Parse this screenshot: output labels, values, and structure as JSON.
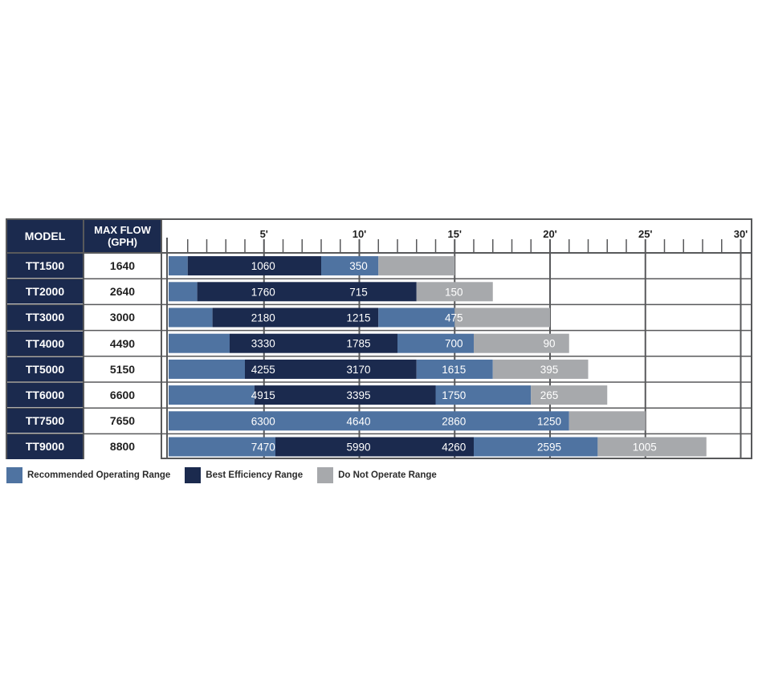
{
  "headers": {
    "model": "MODEL",
    "max_flow_line1": "MAX FLOW",
    "max_flow_line2": "(GPH)"
  },
  "colors": {
    "recommended": "#4f73a1",
    "best_efficiency": "#1b2a4e",
    "do_not_operate": "#a7a9ac",
    "header_bg": "#1b2a4e"
  },
  "legend": [
    {
      "label": "Recommended Operating Range",
      "color": "#4f73a1"
    },
    {
      "label": "Best Efficiency Range",
      "color": "#1b2a4e"
    },
    {
      "label": "Do Not Operate Range",
      "color": "#a7a9ac"
    }
  ],
  "chart_data": {
    "type": "bar",
    "orientation": "horizontal",
    "stacked": true,
    "xlim": [
      0,
      30
    ],
    "x_ticks": [
      "5'",
      "10'",
      "15'",
      "20'",
      "25'",
      "30'"
    ],
    "x_tick_values": [
      5,
      10,
      15,
      20,
      25,
      30
    ],
    "grid": true,
    "legend_position": "bottom-left",
    "rows": [
      {
        "model": "TT1500",
        "max_flow": "1640",
        "segments": [
          {
            "range": "recommended",
            "from": 0,
            "to": 1
          },
          {
            "range": "best_efficiency",
            "from": 1,
            "to": 8
          },
          {
            "range": "recommended",
            "from": 8,
            "to": 11
          },
          {
            "range": "do_not_operate",
            "from": 11,
            "to": 15
          }
        ],
        "labels": [
          {
            "text": "1060",
            "x": 5
          },
          {
            "text": "350",
            "x": 10
          }
        ]
      },
      {
        "model": "TT2000",
        "max_flow": "2640",
        "segments": [
          {
            "range": "recommended",
            "from": 0,
            "to": 1.5
          },
          {
            "range": "best_efficiency",
            "from": 1.5,
            "to": 13
          },
          {
            "range": "do_not_operate",
            "from": 13,
            "to": 17
          }
        ],
        "labels": [
          {
            "text": "1760",
            "x": 5
          },
          {
            "text": "715",
            "x": 10
          },
          {
            "text": "150",
            "x": 15
          }
        ]
      },
      {
        "model": "TT3000",
        "max_flow": "3000",
        "segments": [
          {
            "range": "recommended",
            "from": 0,
            "to": 2.3
          },
          {
            "range": "best_efficiency",
            "from": 2.3,
            "to": 11
          },
          {
            "range": "recommended",
            "from": 11,
            "to": 15
          },
          {
            "range": "do_not_operate",
            "from": 15,
            "to": 20
          }
        ],
        "labels": [
          {
            "text": "2180",
            "x": 5
          },
          {
            "text": "1215",
            "x": 10
          },
          {
            "text": "475",
            "x": 15
          }
        ]
      },
      {
        "model": "TT4000",
        "max_flow": "4490",
        "segments": [
          {
            "range": "recommended",
            "from": 0,
            "to": 3.2
          },
          {
            "range": "best_efficiency",
            "from": 3.2,
            "to": 12
          },
          {
            "range": "recommended",
            "from": 12,
            "to": 16
          },
          {
            "range": "do_not_operate",
            "from": 16,
            "to": 21
          }
        ],
        "labels": [
          {
            "text": "3330",
            "x": 5
          },
          {
            "text": "1785",
            "x": 10
          },
          {
            "text": "700",
            "x": 15
          },
          {
            "text": "90",
            "x": 20
          }
        ]
      },
      {
        "model": "TT5000",
        "max_flow": "5150",
        "segments": [
          {
            "range": "recommended",
            "from": 0,
            "to": 4
          },
          {
            "range": "best_efficiency",
            "from": 4,
            "to": 13
          },
          {
            "range": "recommended",
            "from": 13,
            "to": 17
          },
          {
            "range": "do_not_operate",
            "from": 17,
            "to": 22
          }
        ],
        "labels": [
          {
            "text": "4255",
            "x": 5
          },
          {
            "text": "3170",
            "x": 10
          },
          {
            "text": "1615",
            "x": 15
          },
          {
            "text": "395",
            "x": 20
          }
        ]
      },
      {
        "model": "TT6000",
        "max_flow": "6600",
        "segments": [
          {
            "range": "recommended",
            "from": 0,
            "to": 4.5
          },
          {
            "range": "best_efficiency",
            "from": 4.5,
            "to": 14
          },
          {
            "range": "recommended",
            "from": 14,
            "to": 19
          },
          {
            "range": "do_not_operate",
            "from": 19,
            "to": 23
          }
        ],
        "labels": [
          {
            "text": "4915",
            "x": 5
          },
          {
            "text": "3395",
            "x": 10
          },
          {
            "text": "1750",
            "x": 15
          },
          {
            "text": "265",
            "x": 20
          }
        ]
      },
      {
        "model": "TT7500",
        "max_flow": "7650",
        "segments": [
          {
            "range": "recommended",
            "from": 0,
            "to": 21
          },
          {
            "range": "do_not_operate",
            "from": 21,
            "to": 25
          }
        ],
        "labels": [
          {
            "text": "6300",
            "x": 5
          },
          {
            "text": "4640",
            "x": 10
          },
          {
            "text": "2860",
            "x": 15
          },
          {
            "text": "1250",
            "x": 20
          }
        ]
      },
      {
        "model": "TT9000",
        "max_flow": "8800",
        "segments": [
          {
            "range": "recommended",
            "from": 0,
            "to": 5.6
          },
          {
            "range": "best_efficiency",
            "from": 5.6,
            "to": 16
          },
          {
            "range": "recommended",
            "from": 16,
            "to": 22.5
          },
          {
            "range": "do_not_operate",
            "from": 22.5,
            "to": 28.2
          }
        ],
        "labels": [
          {
            "text": "7470",
            "x": 5
          },
          {
            "text": "5990",
            "x": 10
          },
          {
            "text": "4260",
            "x": 15
          },
          {
            "text": "2595",
            "x": 20
          },
          {
            "text": "1005",
            "x": 25
          }
        ]
      }
    ]
  }
}
